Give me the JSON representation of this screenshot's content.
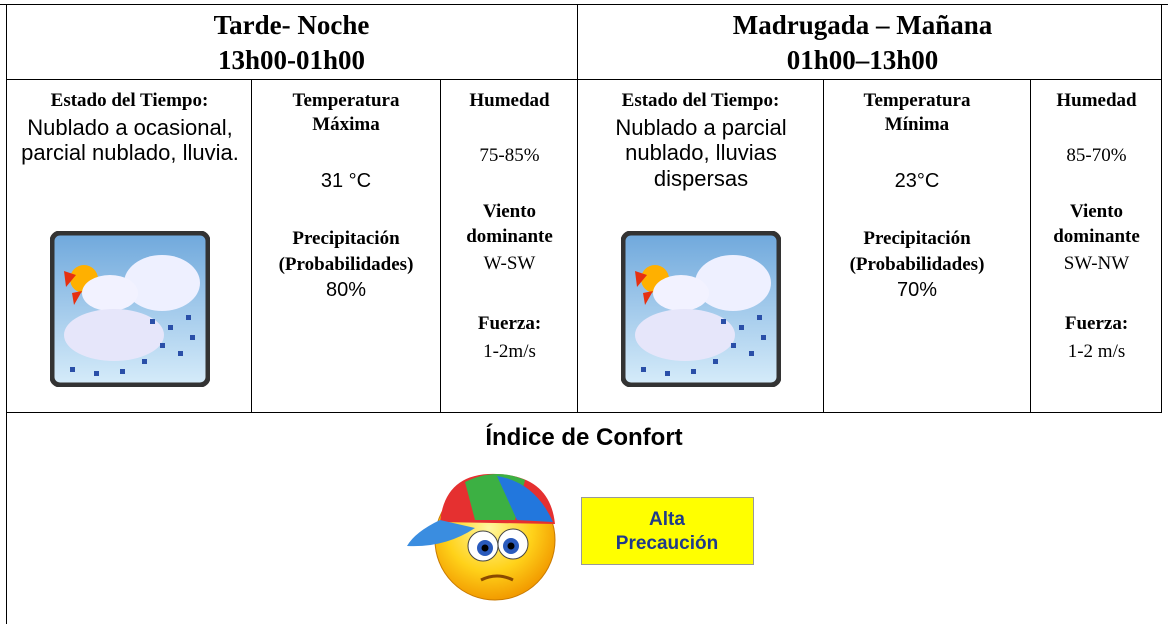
{
  "periods": [
    {
      "title": "Tarde- Noche",
      "hours": "13h00-01h00",
      "weather_label": "Estado del Tiempo:",
      "weather": "Nublado a ocasional, parcial nublado, lluvia.",
      "temp_label": [
        "Temperatura",
        "Máxima"
      ],
      "temp": "31 °C",
      "precip_label": [
        "Precipitación",
        "(Probabilidades)"
      ],
      "precip": "80%",
      "humidity_label": "Humedad",
      "humidity": "75-85%",
      "wind_label": [
        "Viento",
        "dominante"
      ],
      "wind": "W-SW",
      "force_label": "Fuerza:",
      "force": "1-2m/s"
    },
    {
      "title": "Madrugada – Mañana",
      "hours": "01h00–13h00",
      "weather_label": "Estado del Tiempo:",
      "weather": "Nublado  a parcial nublado, lluvias dispersas",
      "temp_label": [
        "Temperatura",
        "Mínima"
      ],
      "temp": "23°C",
      "precip_label": [
        "Precipitación",
        "(Probabilidades)"
      ],
      "precip": "70%",
      "humidity_label": "Humedad",
      "humidity": "85-70%",
      "wind_label": [
        "Viento",
        "dominante"
      ],
      "wind": "SW-NW",
      "force_label": "Fuerza:",
      "force": "1-2 m/s"
    }
  ],
  "comfort": {
    "title": "Índice de Confort",
    "level": [
      "Alta",
      "Precaución"
    ]
  }
}
